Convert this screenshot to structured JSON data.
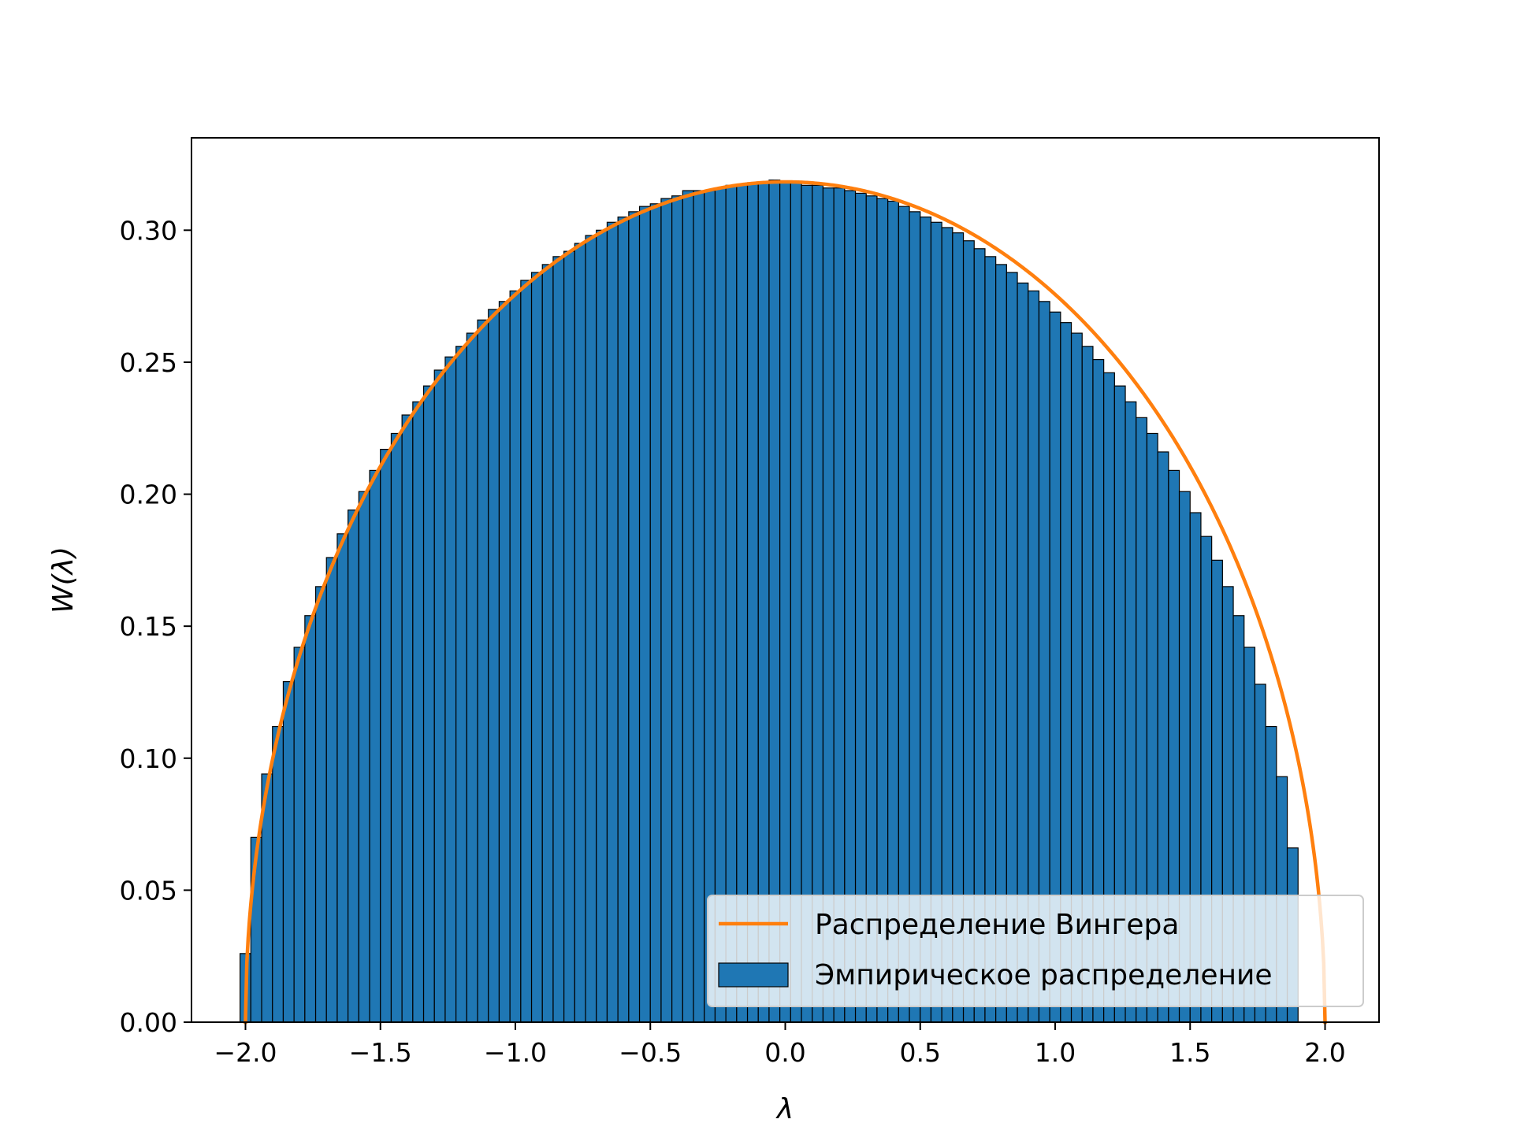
{
  "chart_data": {
    "type": "bar",
    "title": "",
    "xlabel": "λ",
    "ylabel": "W(λ)",
    "xlim": [
      -2.2,
      2.2
    ],
    "ylim": [
      0,
      0.335
    ],
    "xticks": [
      -2.0,
      -1.5,
      -1.0,
      -0.5,
      0.0,
      0.5,
      1.0,
      1.5,
      2.0
    ],
    "xtick_labels": [
      "−2.0",
      "−1.5",
      "−1.0",
      "−0.5",
      "0.0",
      "0.5",
      "1.0",
      "1.5",
      "2.0"
    ],
    "yticks": [
      0.0,
      0.05,
      0.1,
      0.15,
      0.2,
      0.25,
      0.3
    ],
    "ytick_labels": [
      "0.00",
      "0.05",
      "0.10",
      "0.15",
      "0.20",
      "0.25",
      "0.30"
    ],
    "grid": false,
    "legend": {
      "position": "lower right",
      "entries": [
        {
          "label": "Распределение Вингера",
          "kind": "line",
          "color": "#ff7f0e"
        },
        {
          "label": "Эмпирическое распределение",
          "kind": "bar",
          "color": "#1f77b4"
        }
      ]
    },
    "histogram": {
      "name": "Эмпирическое распределение",
      "color": "#1f77b4",
      "edgecolor": "#000000",
      "range": [
        -2.02,
        1.98
      ],
      "bins": 100,
      "density": [
        0.026,
        0.07,
        0.094,
        0.112,
        0.129,
        0.142,
        0.154,
        0.165,
        0.176,
        0.185,
        0.194,
        0.201,
        0.209,
        0.217,
        0.223,
        0.23,
        0.235,
        0.241,
        0.247,
        0.252,
        0.256,
        0.261,
        0.266,
        0.27,
        0.273,
        0.277,
        0.281,
        0.284,
        0.287,
        0.29,
        0.292,
        0.295,
        0.298,
        0.3,
        0.303,
        0.305,
        0.307,
        0.309,
        0.31,
        0.312,
        0.313,
        0.315,
        0.315,
        0.315,
        0.316,
        0.317,
        0.317,
        0.318,
        0.318,
        0.319,
        0.318,
        0.318,
        0.317,
        0.317,
        0.316,
        0.316,
        0.315,
        0.314,
        0.313,
        0.312,
        0.311,
        0.309,
        0.307,
        0.305,
        0.303,
        0.301,
        0.299,
        0.296,
        0.293,
        0.29,
        0.287,
        0.284,
        0.28,
        0.277,
        0.273,
        0.269,
        0.265,
        0.261,
        0.256,
        0.251,
        0.246,
        0.241,
        0.235,
        0.229,
        0.223,
        0.216,
        0.209,
        0.201,
        0.193,
        0.184,
        0.175,
        0.165,
        0.154,
        0.142,
        0.128,
        0.112,
        0.093,
        0.066,
        0.0,
        0.0
      ]
    },
    "curve": {
      "name": "Распределение Вингера",
      "color": "#ff7f0e",
      "formula": "sqrt(4 - λ^2) / (2π)",
      "domain": [
        -2.0,
        2.0
      ]
    }
  }
}
